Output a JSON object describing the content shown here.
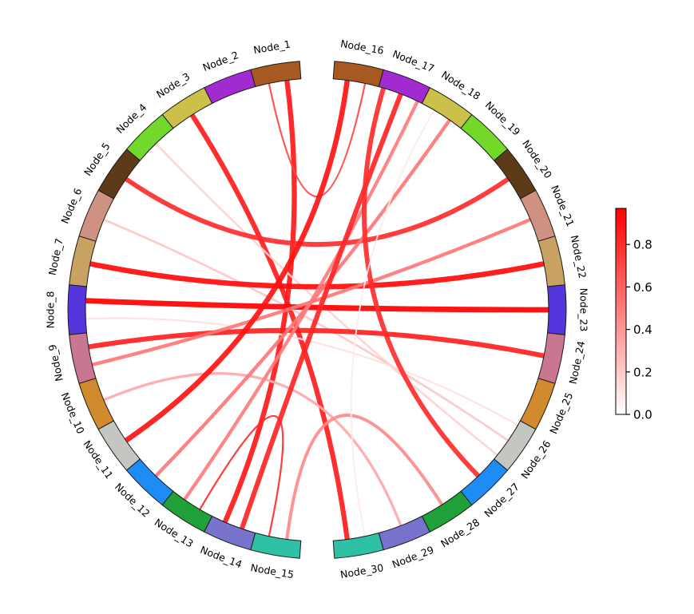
{
  "figure": {
    "background": "#ffffff",
    "title": ""
  },
  "chart_data": {
    "type": "chord",
    "title": "",
    "description": "Circos-style chord diagram of 30 nodes; chord color encodes edge weight via white-to-red colormap",
    "nodes": [
      {
        "name": "Node_1",
        "color": "#a65a21"
      },
      {
        "name": "Node_2",
        "color": "#a12bd1"
      },
      {
        "name": "Node_3",
        "color": "#cbc04a"
      },
      {
        "name": "Node_4",
        "color": "#72d92b"
      },
      {
        "name": "Node_5",
        "color": "#5d3a18"
      },
      {
        "name": "Node_6",
        "color": "#cf9181"
      },
      {
        "name": "Node_7",
        "color": "#c8a263"
      },
      {
        "name": "Node_8",
        "color": "#5536dd"
      },
      {
        "name": "Node_9",
        "color": "#c97790"
      },
      {
        "name": "Node_10",
        "color": "#d18a2c"
      },
      {
        "name": "Node_11",
        "color": "#c4c7c1"
      },
      {
        "name": "Node_12",
        "color": "#1e8cf5"
      },
      {
        "name": "Node_13",
        "color": "#1fa038"
      },
      {
        "name": "Node_14",
        "color": "#7773cd"
      },
      {
        "name": "Node_15",
        "color": "#2ec0a4"
      },
      {
        "name": "Node_16",
        "color": "#a65a21"
      },
      {
        "name": "Node_17",
        "color": "#a12bd1"
      },
      {
        "name": "Node_18",
        "color": "#cbc04a"
      },
      {
        "name": "Node_19",
        "color": "#72d92b"
      },
      {
        "name": "Node_20",
        "color": "#5d3a18"
      },
      {
        "name": "Node_21",
        "color": "#cf9181"
      },
      {
        "name": "Node_22",
        "color": "#c8a263"
      },
      {
        "name": "Node_23",
        "color": "#5536dd"
      },
      {
        "name": "Node_24",
        "color": "#c97790"
      },
      {
        "name": "Node_25",
        "color": "#d18a2c"
      },
      {
        "name": "Node_26",
        "color": "#c4c7c1"
      },
      {
        "name": "Node_27",
        "color": "#1e8cf5"
      },
      {
        "name": "Node_28",
        "color": "#1fa038"
      },
      {
        "name": "Node_29",
        "color": "#7773cd"
      },
      {
        "name": "Node_30",
        "color": "#2ec0a4"
      }
    ],
    "links": [
      {
        "source": "Node_1",
        "target": "Node_14",
        "value": 0.88
      },
      {
        "source": "Node_1",
        "target": "Node_16",
        "value": 0.7
      },
      {
        "source": "Node_3",
        "target": "Node_30",
        "value": 0.86
      },
      {
        "source": "Node_4",
        "target": "Node_26",
        "value": 0.18
      },
      {
        "source": "Node_5",
        "target": "Node_20",
        "value": 0.8
      },
      {
        "source": "Node_6",
        "target": "Node_26",
        "value": 0.22
      },
      {
        "source": "Node_7",
        "target": "Node_22",
        "value": 0.93
      },
      {
        "source": "Node_8",
        "target": "Node_23",
        "value": 0.97
      },
      {
        "source": "Node_8",
        "target": "Node_26",
        "value": 0.12
      },
      {
        "source": "Node_9",
        "target": "Node_24",
        "value": 0.85
      },
      {
        "source": "Node_9",
        "target": "Node_21",
        "value": 0.52
      },
      {
        "source": "Node_10",
        "target": "Node_29",
        "value": 0.33
      },
      {
        "source": "Node_11",
        "target": "Node_16",
        "value": 0.9
      },
      {
        "source": "Node_12",
        "target": "Node_18",
        "value": 0.52
      },
      {
        "source": "Node_13",
        "target": "Node_17",
        "value": 0.5
      },
      {
        "source": "Node_13",
        "target": "Node_15",
        "value": 0.8
      },
      {
        "source": "Node_14",
        "target": "Node_17",
        "value": 0.83
      },
      {
        "source": "Node_15",
        "target": "Node_28",
        "value": 0.45
      },
      {
        "source": "Node_17",
        "target": "Node_27",
        "value": 0.8
      },
      {
        "source": "Node_18",
        "target": "Node_30",
        "value": 0.08
      }
    ],
    "layout": {
      "left_arc_nodes": "Node_1..Node_15 (top going counterclockwise to bottom-left)",
      "right_arc_nodes": "Node_16..Node_30 (top going clockwise to bottom-right)",
      "gap_top_between": [
        "Node_1",
        "Node_16"
      ],
      "gap_bottom_between": [
        "Node_15",
        "Node_30"
      ],
      "grid": false,
      "legend_position": "right"
    },
    "colorbar": {
      "orientation": "vertical",
      "min": 0.0,
      "max": 0.97,
      "tick_values": [
        0.0,
        0.2,
        0.4,
        0.6,
        0.8
      ],
      "tick_labels": [
        "0.0",
        "0.2",
        "0.4",
        "0.6",
        "0.8"
      ],
      "cmap_low": "#ffffff",
      "cmap_high": "#ff0000"
    }
  }
}
